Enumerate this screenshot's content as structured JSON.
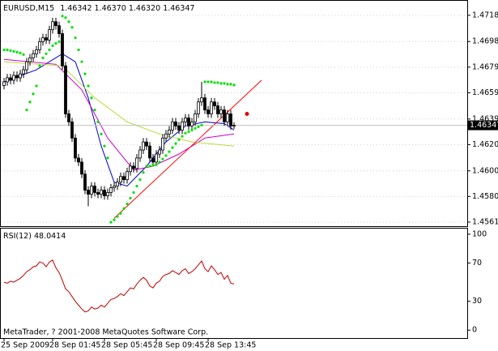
{
  "chart_data": {
    "type": "candlestick",
    "symbol": "EURUSD,M15",
    "header_labels": [
      "1.46342",
      "1.46370",
      "1.46320",
      "1.46347"
    ],
    "categories": [
      "25 Sep 2009",
      null,
      null,
      null,
      null,
      null,
      null,
      null,
      null,
      null,
      null,
      null,
      null,
      null,
      null,
      "28 Sep 01:45",
      null,
      null,
      null,
      null,
      null,
      null,
      null,
      null,
      null,
      null,
      null,
      null,
      null,
      null,
      null,
      "28 Sep 05:45",
      null,
      null,
      null,
      null,
      null,
      null,
      null,
      null,
      null,
      null,
      null,
      null,
      null,
      null,
      null,
      "28 Sep 09:45",
      null,
      null,
      null,
      null,
      null,
      null,
      null,
      null,
      null,
      null,
      null,
      null,
      null,
      null,
      null,
      "28 Sep 13:45",
      null,
      null,
      null,
      null,
      null,
      null,
      null,
      null
    ],
    "open": [
      1.4665,
      1.46678,
      1.46709,
      1.4669,
      1.46727,
      1.46709,
      1.46739,
      1.4677,
      1.46831,
      1.46861,
      1.46892,
      1.46922,
      1.46984,
      1.47014,
      1.46996,
      1.47075,
      1.47136,
      1.47106,
      1.47045,
      1.468,
      1.46434,
      1.46373,
      1.4625,
      1.46098,
      1.46067,
      1.45975,
      1.45853,
      1.45822,
      1.45884,
      1.45835,
      1.45822,
      1.45853,
      1.4581,
      1.45835,
      1.45871,
      1.45884,
      1.45914,
      1.45957,
      1.45933,
      1.45994,
      1.46036,
      1.46018,
      1.46098,
      1.46159,
      1.4622,
      1.46189,
      1.46098,
      1.46067,
      1.46128,
      1.46159,
      1.4625,
      1.46281,
      1.46311,
      1.46373,
      1.46342,
      1.46311,
      1.46373,
      1.46403,
      1.46342,
      1.46373,
      1.46434,
      1.46525,
      1.46556,
      1.46464,
      1.46434,
      1.46525,
      1.46495,
      1.46434,
      1.46464,
      1.46373,
      1.46434,
      1.46342
    ],
    "high": [
      1.46708,
      1.46739,
      1.46739,
      1.46757,
      1.46757,
      1.46769,
      1.468,
      1.46861,
      1.46891,
      1.46922,
      1.46952,
      1.47014,
      1.47044,
      1.47044,
      1.47105,
      1.47166,
      1.47166,
      1.47136,
      1.47075,
      1.4683,
      1.46464,
      1.46403,
      1.4628,
      1.46128,
      1.46097,
      1.46005,
      1.45883,
      1.45914,
      1.45914,
      1.45865,
      1.45883,
      1.45883,
      1.45865,
      1.45901,
      1.45914,
      1.45944,
      1.45987,
      1.45987,
      1.46024,
      1.46066,
      1.46066,
      1.46128,
      1.46189,
      1.4625,
      1.4625,
      1.46219,
      1.46128,
      1.46158,
      1.46189,
      1.4628,
      1.46311,
      1.46341,
      1.46403,
      1.46403,
      1.46372,
      1.46403,
      1.46433,
      1.46433,
      1.46403,
      1.46464,
      1.46555,
      1.46678,
      1.46586,
      1.46494,
      1.46555,
      1.46555,
      1.46525,
      1.46494,
      1.46494,
      1.46464,
      1.46464,
      1.4637
    ],
    "low": [
      1.4662,
      1.46648,
      1.4666,
      1.4666,
      1.46679,
      1.46679,
      1.46709,
      1.4674,
      1.46801,
      1.46831,
      1.46862,
      1.46892,
      1.46954,
      1.46966,
      1.46966,
      1.47045,
      1.47076,
      1.47015,
      1.4677,
      1.46404,
      1.46343,
      1.4622,
      1.46068,
      1.46037,
      1.45945,
      1.45823,
      1.4573,
      1.45792,
      1.45805,
      1.45792,
      1.45792,
      1.4578,
      1.4578,
      1.45805,
      1.45841,
      1.45854,
      1.45884,
      1.45903,
      1.45903,
      1.45964,
      1.45988,
      1.45988,
      1.46068,
      1.46129,
      1.46159,
      1.46068,
      1.46037,
      1.46037,
      1.46098,
      1.46129,
      1.4622,
      1.46251,
      1.46281,
      1.46312,
      1.46281,
      1.46281,
      1.46343,
      1.46312,
      1.46312,
      1.46343,
      1.46404,
      1.46495,
      1.46434,
      1.46404,
      1.46404,
      1.46465,
      1.46404,
      1.46404,
      1.46343,
      1.46343,
      1.46312,
      1.4632
    ],
    "close": [
      1.46678,
      1.46709,
      1.4669,
      1.46727,
      1.46709,
      1.46739,
      1.4677,
      1.46831,
      1.46861,
      1.46892,
      1.46922,
      1.46984,
      1.47014,
      1.46996,
      1.47075,
      1.47136,
      1.47106,
      1.47045,
      1.468,
      1.46434,
      1.46373,
      1.4625,
      1.46098,
      1.46067,
      1.45975,
      1.45853,
      1.45822,
      1.45884,
      1.45835,
      1.45822,
      1.45853,
      1.4581,
      1.45835,
      1.45871,
      1.45884,
      1.45914,
      1.45957,
      1.45933,
      1.45994,
      1.46036,
      1.46018,
      1.46098,
      1.46159,
      1.4622,
      1.46189,
      1.46098,
      1.46067,
      1.46128,
      1.46159,
      1.4625,
      1.46281,
      1.46311,
      1.46373,
      1.46342,
      1.46311,
      1.46373,
      1.46403,
      1.46342,
      1.46373,
      1.46434,
      1.46525,
      1.46556,
      1.46464,
      1.46434,
      1.46525,
      1.46495,
      1.46434,
      1.46464,
      1.46373,
      1.46434,
      1.46342,
      1.46347
    ],
    "ylim": [
      1.45585,
      1.47289
    ],
    "yticks": [
      1.47185,
      1.46985,
      {
        "value": 1.4679,
        "label": "1.46790"
      },
      1.46595,
      1.46395,
      {
        "value": 1.462,
        "label": "1.46200"
      },
      {
        "value": 1.46,
        "label": "1.46000"
      },
      1.45805,
      {
        "value": 1.4561,
        "label": "1.45610"
      }
    ],
    "grid": true,
    "sar": {
      "color": "#00e000",
      "values": [
        1.46922,
        1.46922,
        1.46916,
        1.4691,
        1.46904,
        1.46898,
        1.46886,
        1.46464,
        1.46525,
        1.46586,
        1.46647,
        1.468,
        1.46861,
        1.46892,
        1.46922,
        1.46953,
        1.46971,
        1.46984,
        1.47179,
        1.47167,
        1.47136,
        1.47093,
        1.47014,
        1.46922,
        1.46831,
        1.46739,
        1.46647,
        1.46556,
        1.46464,
        1.46373,
        1.46281,
        1.46189,
        1.46098,
        1.45609,
        1.45627,
        1.45652,
        1.45676,
        1.45713,
        1.45749,
        1.45792,
        1.45835,
        1.45884,
        1.45933,
        1.45988,
        1.46036,
        1.46036,
        1.46043,
        1.46049,
        1.46067,
        1.46091,
        1.46116,
        1.46146,
        1.46177,
        1.46208,
        1.46238,
        1.46263,
        1.46287,
        1.46299,
        1.46311,
        1.46324,
        1.46336,
        1.46348,
        1.46678,
        1.46678,
        1.46678,
        1.46672,
        1.46672,
        1.46666,
        1.46666,
        1.4666,
        1.4666,
        1.46654
      ]
    },
    "moving_averages": [
      {
        "color": "#0000c8",
        "x": [
          0,
          10,
          18,
          22,
          26,
          30,
          34,
          38,
          44,
          50,
          56,
          62,
          68,
          71
        ],
        "values": [
          1.46678,
          1.4677,
          1.46892,
          1.46831,
          1.46556,
          1.46189,
          1.45914,
          1.45884,
          1.46036,
          1.4622,
          1.46342,
          1.46373,
          1.4636,
          1.46311
        ]
      },
      {
        "color": "#c800c8",
        "x": [
          0,
          16,
          24,
          32,
          40,
          46,
          54,
          62,
          71
        ],
        "values": [
          1.46849,
          1.46812,
          1.46617,
          1.4625,
          1.46006,
          1.46036,
          1.46128,
          1.4625,
          1.46281
        ]
      },
      {
        "color": "#b8dc3c",
        "x": [
          0,
          18,
          28,
          38,
          48,
          58,
          71
        ],
        "values": [
          1.46831,
          1.468,
          1.46556,
          1.46373,
          1.46281,
          1.4622,
          1.46189
        ]
      }
    ],
    "trendline": {
      "color": "#ff0000",
      "x": [
        34,
        79.5
      ],
      "values": [
        1.45639,
        1.4669
      ]
    },
    "signals": [
      {
        "x": 75,
        "value": 1.46434,
        "color": "#e00000"
      }
    ],
    "indicator": {
      "type": "line",
      "title": "RSI(12)",
      "color": "#c00000",
      "values": [
        50,
        49,
        51,
        50,
        52,
        54,
        57,
        61,
        63,
        66,
        67,
        71,
        70,
        66,
        71,
        73,
        65,
        60,
        52,
        43,
        40,
        35,
        30,
        26,
        22,
        19,
        20,
        24,
        22,
        23,
        26,
        24,
        28,
        32,
        33,
        35,
        38,
        36,
        40,
        44,
        43,
        48,
        52,
        55,
        52,
        46,
        44,
        49,
        51,
        56,
        58,
        59,
        62,
        60,
        58,
        62,
        64,
        59,
        61,
        64,
        68,
        72,
        64,
        61,
        67,
        63,
        58,
        60,
        53,
        57,
        49,
        48.0414
      ],
      "ylim": [
        -7.4,
        105
      ],
      "yticks": [
        100,
        70,
        30,
        0
      ]
    },
    "footer": "MetaTrader, ? 2001-2008 MetaQuotes Software Corp."
  }
}
